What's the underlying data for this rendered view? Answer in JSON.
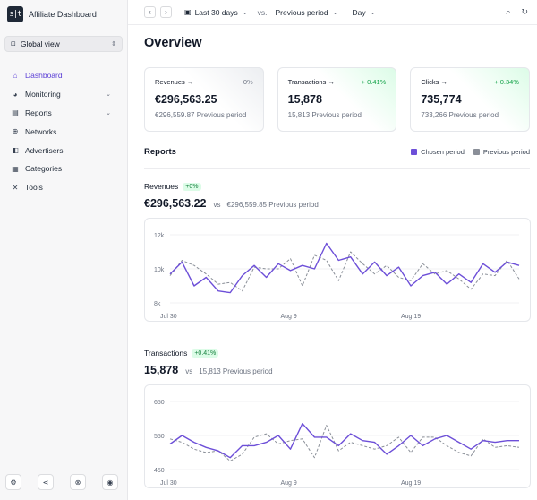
{
  "app": {
    "logo_text": "s|t",
    "title": "Affiliate Dashboard"
  },
  "view_select": {
    "label": "Global view"
  },
  "nav": [
    {
      "label": "Dashboard",
      "icon": "home-icon",
      "glyph": "⌂",
      "active": true,
      "has_chevron": false
    },
    {
      "label": "Monitoring",
      "icon": "pie-chart-icon",
      "glyph": "◕",
      "active": false,
      "has_chevron": true
    },
    {
      "label": "Reports",
      "icon": "document-icon",
      "glyph": "▤",
      "active": false,
      "has_chevron": true
    },
    {
      "label": "Networks",
      "icon": "globe-icon",
      "glyph": "⊕",
      "active": false,
      "has_chevron": false
    },
    {
      "label": "Advertisers",
      "icon": "megaphone-icon",
      "glyph": "◧",
      "active": false,
      "has_chevron": false
    },
    {
      "label": "Categories",
      "icon": "tags-icon",
      "glyph": "▦",
      "active": false,
      "has_chevron": false
    },
    {
      "label": "Tools",
      "icon": "tools-icon",
      "glyph": "✕",
      "active": false,
      "has_chevron": false
    }
  ],
  "footer_buttons": [
    {
      "icon": "gear-icon",
      "glyph": "⚙"
    },
    {
      "icon": "share-icon",
      "glyph": "⋖"
    },
    {
      "icon": "help-icon",
      "glyph": "⊗"
    },
    {
      "icon": "user-icon",
      "glyph": "◉"
    }
  ],
  "topbar": {
    "date_range": "Last 30 days",
    "vs": "vs.",
    "compare": "Previous period",
    "granularity": "Day"
  },
  "page_title": "Overview",
  "cards": [
    {
      "label": "Revenues",
      "delta": "0%",
      "value": "€296,563.25",
      "prev": "€296,559.87 Previous period",
      "tone": "neutral"
    },
    {
      "label": "Transactions",
      "delta": "+ 0.41%",
      "value": "15,878",
      "prev": "15,813 Previous period",
      "tone": "positive"
    },
    {
      "label": "Clicks",
      "delta": "+ 0.34%",
      "value": "735,774",
      "prev": "733,266 Previous period",
      "tone": "positive"
    }
  ],
  "reports": {
    "title": "Reports",
    "legend": {
      "chosen": "Chosen period",
      "previous": "Previous period"
    },
    "colors": {
      "chosen": "#6d4fd8",
      "previous": "#8a8f98"
    }
  },
  "sections": [
    {
      "label": "Revenues",
      "badge": "+0%",
      "value": "€296,563.22",
      "vs": "vs",
      "prev": "€296,559.85 Previous period",
      "chart_data": {
        "type": "line",
        "x": [
          "Jul 30",
          "Jul 31",
          "Aug 1",
          "Aug 2",
          "Aug 3",
          "Aug 4",
          "Aug 5",
          "Aug 6",
          "Aug 7",
          "Aug 8",
          "Aug 9",
          "Aug 10",
          "Aug 11",
          "Aug 12",
          "Aug 13",
          "Aug 14",
          "Aug 15",
          "Aug 16",
          "Aug 17",
          "Aug 18",
          "Aug 19",
          "Aug 20",
          "Aug 21",
          "Aug 22",
          "Aug 23",
          "Aug 24",
          "Aug 25",
          "Aug 26",
          "Aug 27",
          "Aug 28"
        ],
        "x_tick_labels": [
          "Jul 30",
          "Aug 9",
          "Aug 19"
        ],
        "y_ticks": [
          "8k",
          "10k",
          "12k"
        ],
        "ylim": [
          8000,
          12000
        ],
        "series": [
          {
            "name": "Chosen period",
            "values": [
              9700,
              10400,
              9000,
              9500,
              8700,
              8600,
              9600,
              10200,
              9500,
              10300,
              9900,
              10200,
              10000,
              11500,
              10500,
              10700,
              9700,
              10400,
              9600,
              10100,
              9000,
              9600,
              9800,
              9100,
              9700,
              9200,
              10300,
              9800,
              10400,
              10200
            ]
          },
          {
            "name": "Previous period",
            "values": [
              9600,
              10500,
              10200,
              9700,
              9100,
              9200,
              8700,
              10100,
              10000,
              10000,
              10600,
              9000,
              10800,
              10500,
              9300,
              11000,
              10300,
              9700,
              10200,
              9500,
              9300,
              10300,
              9700,
              9900,
              9400,
              8800,
              9700,
              9600,
              10500,
              9400
            ]
          }
        ]
      }
    },
    {
      "label": "Transactions",
      "badge": "+0.41%",
      "value": "15,878",
      "vs": "vs",
      "prev": "15,813 Previous period",
      "chart_data": {
        "type": "line",
        "x": [
          "Jul 30",
          "Jul 31",
          "Aug 1",
          "Aug 2",
          "Aug 3",
          "Aug 4",
          "Aug 5",
          "Aug 6",
          "Aug 7",
          "Aug 8",
          "Aug 9",
          "Aug 10",
          "Aug 11",
          "Aug 12",
          "Aug 13",
          "Aug 14",
          "Aug 15",
          "Aug 16",
          "Aug 17",
          "Aug 18",
          "Aug 19",
          "Aug 20",
          "Aug 21",
          "Aug 22",
          "Aug 23",
          "Aug 24",
          "Aug 25",
          "Aug 26",
          "Aug 27",
          "Aug 28"
        ],
        "x_tick_labels": [
          "Jul 30",
          "Aug 9",
          "Aug 19"
        ],
        "y_ticks": [
          "450",
          "550",
          "650"
        ],
        "ylim": [
          450,
          650
        ],
        "series": [
          {
            "name": "Chosen period",
            "values": [
              525,
              550,
              530,
              515,
              505,
              485,
              520,
              520,
              530,
              550,
              510,
              585,
              545,
              545,
              520,
              555,
              535,
              530,
              495,
              520,
              550,
              520,
              540,
              550,
              530,
              510,
              535,
              530,
              535,
              535
            ]
          },
          {
            "name": "Previous period",
            "values": [
              540,
              530,
              510,
              500,
              505,
              475,
              495,
              545,
              555,
              525,
              535,
              540,
              485,
              580,
              505,
              530,
              520,
              510,
              520,
              545,
              500,
              545,
              545,
              520,
              500,
              490,
              540,
              515,
              520,
              515
            ]
          }
        ]
      }
    }
  ]
}
